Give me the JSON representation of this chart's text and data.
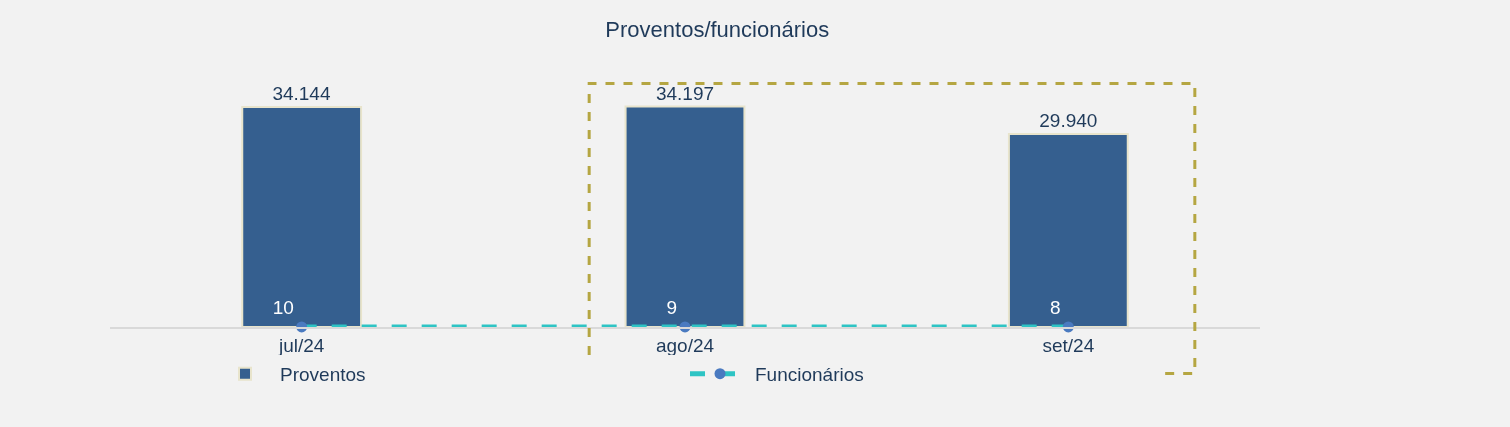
{
  "chart_data": {
    "type": "bar",
    "title": "Proventos/funcionários",
    "categories": [
      "jul/24",
      "ago/24",
      "set/24"
    ],
    "series": [
      {
        "name": "Proventos",
        "color": "#355f8f",
        "values": [
          34144,
          34197,
          29940
        ],
        "value_labels": [
          "34.144",
          "34.197",
          "29.940"
        ]
      },
      {
        "name": "Funcionários",
        "type": "line",
        "color": "#2ec4c4",
        "values": [
          10,
          9,
          8
        ],
        "value_labels": [
          "10",
          "9",
          "8"
        ],
        "marker": "circle",
        "line_style": "dashed"
      }
    ],
    "tick_labels": "x",
    "grid": false,
    "legend": "bottom"
  }
}
